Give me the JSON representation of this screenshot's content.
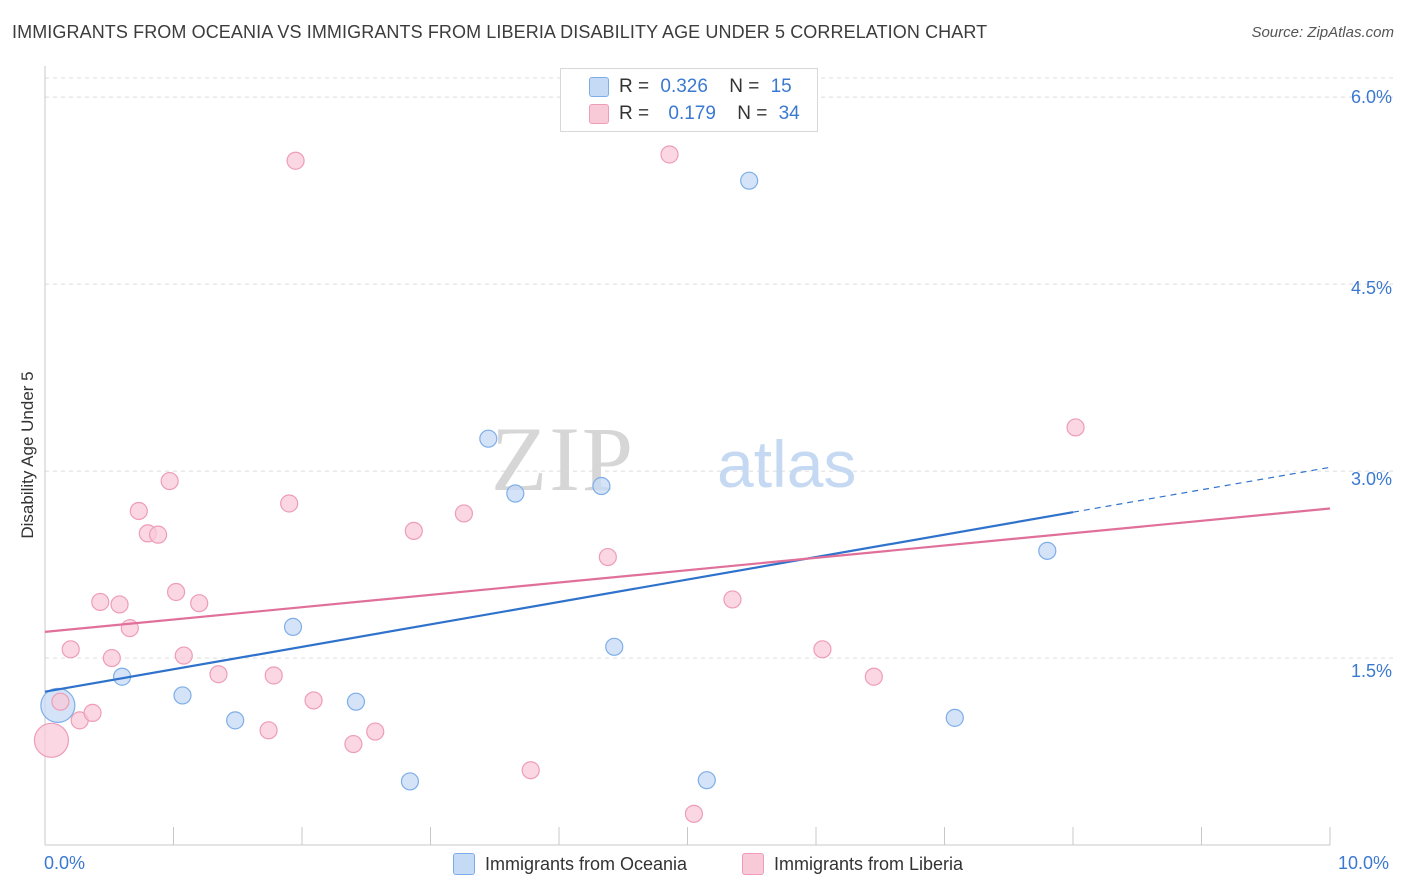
{
  "chart_data": {
    "type": "scatter",
    "title": "IMMIGRANTS FROM OCEANIA VS IMMIGRANTS FROM LIBERIA DISABILITY AGE UNDER 5 CORRELATION CHART",
    "source": "Source: ZipAtlas.com",
    "ylabel": "Disability Age Under 5",
    "xlabel": "",
    "xlim": [
      0,
      10
    ],
    "ylim": [
      0,
      6.25
    ],
    "x_tick_labels": [
      "0.0%",
      "10.0%"
    ],
    "y_tick_labels": [
      "1.5%",
      "3.0%",
      "4.5%",
      "6.0%"
    ],
    "y_tick_values": [
      1.5,
      3.0,
      4.5,
      6.0
    ],
    "watermark": {
      "zip": "ZIP",
      "atlas": "atlas"
    },
    "legend": [
      {
        "series": "Immigrants from Oceania",
        "r_label": "R =",
        "r": "0.326",
        "n_label": "N =",
        "n": "15"
      },
      {
        "series": "Immigrants from Liberia",
        "r_label": "R =",
        "r": "0.179",
        "n_label": "N =",
        "n": "34"
      }
    ],
    "series": [
      {
        "name": "Immigrants from Oceania",
        "color": "#7eaee8",
        "fill": "#c5daf5",
        "line_color": "#2f72cc",
        "trend": {
          "x0": 0,
          "y0": 1.23,
          "x1": 8.0,
          "y1": 2.67,
          "dashed_to_x": 10,
          "dashed_to_y": 3.03
        },
        "points": [
          {
            "x": 0.1,
            "y": 1.12,
            "big": true
          },
          {
            "x": 0.6,
            "y": 1.35
          },
          {
            "x": 1.07,
            "y": 1.2
          },
          {
            "x": 1.48,
            "y": 1.0
          },
          {
            "x": 1.93,
            "y": 1.75
          },
          {
            "x": 2.42,
            "y": 1.15
          },
          {
            "x": 2.84,
            "y": 0.51
          },
          {
            "x": 3.45,
            "y": 3.26
          },
          {
            "x": 3.66,
            "y": 2.82
          },
          {
            "x": 4.33,
            "y": 2.88
          },
          {
            "x": 4.43,
            "y": 1.59
          },
          {
            "x": 5.15,
            "y": 0.52
          },
          {
            "x": 5.48,
            "y": 5.33
          },
          {
            "x": 7.08,
            "y": 1.02
          },
          {
            "x": 7.8,
            "y": 2.36
          }
        ]
      },
      {
        "name": "Immigrants from Liberia",
        "color": "#ee9db7",
        "fill": "#f8cad8",
        "line_color": "#e0709a",
        "trend": {
          "x0": 0,
          "y0": 1.71,
          "x1": 10,
          "y1": 2.7
        },
        "points": [
          {
            "x": 0.05,
            "y": 0.84,
            "big": true
          },
          {
            "x": 0.12,
            "y": 1.15
          },
          {
            "x": 0.2,
            "y": 1.57
          },
          {
            "x": 0.27,
            "y": 1.0
          },
          {
            "x": 0.37,
            "y": 1.06
          },
          {
            "x": 0.43,
            "y": 1.95
          },
          {
            "x": 0.52,
            "y": 1.5
          },
          {
            "x": 0.58,
            "y": 1.93
          },
          {
            "x": 0.66,
            "y": 1.74
          },
          {
            "x": 0.73,
            "y": 2.68
          },
          {
            "x": 0.8,
            "y": 2.5
          },
          {
            "x": 0.88,
            "y": 2.49
          },
          {
            "x": 0.97,
            "y": 2.92
          },
          {
            "x": 1.02,
            "y": 2.03
          },
          {
            "x": 1.08,
            "y": 1.52
          },
          {
            "x": 1.2,
            "y": 1.94
          },
          {
            "x": 1.35,
            "y": 1.37
          },
          {
            "x": 1.74,
            "y": 0.92
          },
          {
            "x": 1.78,
            "y": 1.36
          },
          {
            "x": 1.9,
            "y": 2.74
          },
          {
            "x": 1.95,
            "y": 5.49
          },
          {
            "x": 2.09,
            "y": 1.16
          },
          {
            "x": 2.4,
            "y": 0.81
          },
          {
            "x": 2.57,
            "y": 0.91
          },
          {
            "x": 2.87,
            "y": 2.52
          },
          {
            "x": 3.26,
            "y": 2.66
          },
          {
            "x": 3.78,
            "y": 0.6
          },
          {
            "x": 4.38,
            "y": 2.31
          },
          {
            "x": 4.86,
            "y": 5.54
          },
          {
            "x": 5.05,
            "y": 0.25
          },
          {
            "x": 5.35,
            "y": 1.97
          },
          {
            "x": 6.05,
            "y": 1.57
          },
          {
            "x": 6.45,
            "y": 1.35
          },
          {
            "x": 8.02,
            "y": 3.35
          }
        ]
      }
    ]
  }
}
